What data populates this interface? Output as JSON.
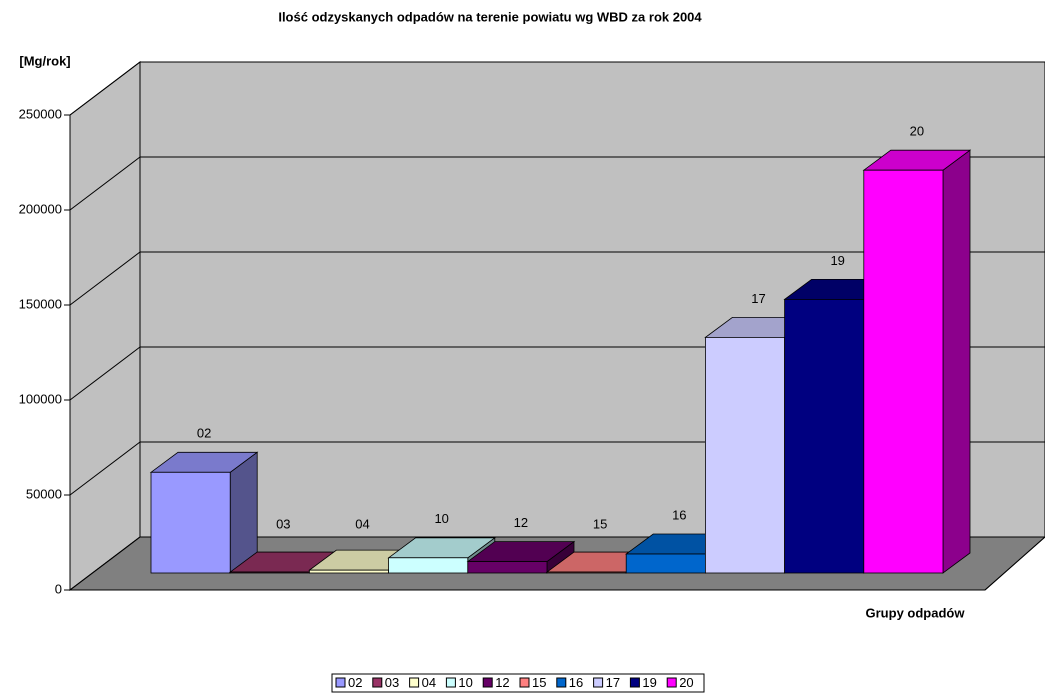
{
  "chart_data": {
    "type": "bar3d",
    "title": "Ilość odzyskanych odpadów na terenie powiatu wg WBD za rok 2004",
    "y_label": "[Mg/rok]",
    "x_label": "Grupy odpadów",
    "series": [
      {
        "name": "02",
        "color": "#9999ff",
        "values": [
          53000
        ]
      },
      {
        "name": "03",
        "color": "#993366",
        "values": [
          500
        ]
      },
      {
        "name": "04",
        "color": "#ffffcc",
        "values": [
          1500
        ]
      },
      {
        "name": "10",
        "color": "#ccffff",
        "values": [
          8000
        ]
      },
      {
        "name": "12",
        "color": "#660066",
        "values": [
          6000
        ]
      },
      {
        "name": "15",
        "color": "#ff8080",
        "values": [
          500
        ]
      },
      {
        "name": "16",
        "color": "#0066cc",
        "values": [
          10000
        ]
      },
      {
        "name": "17",
        "color": "#ccccff",
        "values": [
          124000
        ]
      },
      {
        "name": "19",
        "color": "#000080",
        "values": [
          144000
        ]
      },
      {
        "name": "20",
        "color": "#ff00ff",
        "values": [
          212000
        ]
      }
    ],
    "ylim": [
      0,
      250000
    ],
    "yticks": [
      0,
      50000,
      100000,
      150000,
      200000,
      250000
    ],
    "grid": true,
    "legend": "bottom"
  }
}
